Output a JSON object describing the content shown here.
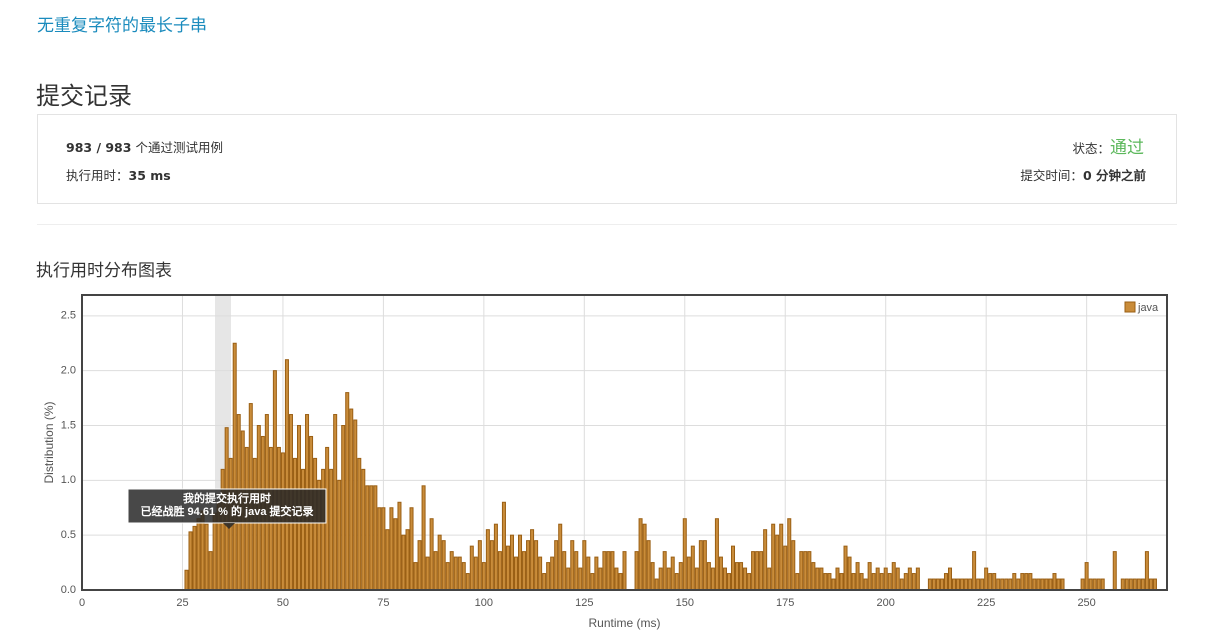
{
  "header": {
    "problem": "无重复字符的最长子串",
    "title": "提交记录"
  },
  "summary": {
    "passed": "983 / 983",
    "passed_text": "个通过测试用例",
    "runtime_label": "执行用时：",
    "runtime": "35 ms",
    "status_label": "状态：",
    "status": "通过",
    "time_label": "提交时间：",
    "time": "0 分钟之前"
  },
  "chart_heading": "执行用时分布图表",
  "chart_data": {
    "type": "bar",
    "xlabel": "Runtime (ms)",
    "ylabel": "Distribution (%)",
    "series": [
      {
        "name": "java",
        "color": "#c98c3a",
        "edge": "#9a5f14"
      }
    ],
    "tooltip": [
      "我的提交执行用时",
      "已经战胜 94.61 % 的 java 提交记录"
    ],
    "x": [
      26,
      27,
      28,
      29,
      30,
      31,
      32,
      33,
      34,
      35,
      36,
      37,
      38,
      39,
      40,
      41,
      42,
      43,
      44,
      45,
      46,
      47,
      48,
      49,
      50,
      51,
      52,
      53,
      54,
      55,
      56,
      57,
      58,
      59,
      60,
      61,
      62,
      63,
      64,
      65,
      66,
      67,
      68,
      69,
      70,
      71,
      72,
      73,
      74,
      75,
      76,
      77,
      78,
      79,
      80,
      81,
      82,
      83,
      84,
      85,
      86,
      87,
      88,
      89,
      90,
      91,
      92,
      93,
      94,
      95,
      96,
      97,
      98,
      99,
      100,
      101,
      102,
      103,
      104,
      105,
      106,
      107,
      108,
      109,
      110,
      111,
      112,
      113,
      114,
      115,
      116,
      117,
      118,
      119,
      120,
      121,
      122,
      123,
      124,
      125,
      126,
      127,
      128,
      129,
      130,
      131,
      132,
      133,
      134,
      135,
      138,
      139,
      140,
      141,
      142,
      143,
      144,
      145,
      146,
      147,
      148,
      149,
      150,
      151,
      152,
      153,
      154,
      155,
      156,
      157,
      158,
      159,
      160,
      161,
      162,
      163,
      164,
      165,
      166,
      167,
      168,
      169,
      170,
      171,
      172,
      173,
      174,
      175,
      176,
      177,
      178,
      179,
      180,
      181,
      182,
      183,
      184,
      185,
      186,
      187,
      188,
      189,
      190,
      191,
      192,
      193,
      194,
      195,
      196,
      197,
      198,
      199,
      200,
      201,
      202,
      203,
      204,
      205,
      206,
      207,
      208,
      211,
      212,
      213,
      214,
      215,
      216,
      217,
      218,
      219,
      220,
      221,
      222,
      223,
      224,
      225,
      226,
      227,
      228,
      229,
      230,
      231,
      232,
      233,
      234,
      235,
      236,
      237,
      238,
      239,
      240,
      241,
      242,
      243,
      244,
      249,
      250,
      251,
      252,
      253,
      254,
      257,
      259,
      260,
      261,
      262,
      263,
      264,
      265,
      266,
      267
    ],
    "values": [
      0.18,
      0.53,
      0.58,
      0.65,
      0.72,
      0.6,
      0.35,
      0.7,
      0.8,
      1.1,
      1.48,
      1.2,
      2.25,
      1.6,
      1.45,
      1.3,
      1.7,
      1.2,
      1.5,
      1.4,
      1.6,
      1.3,
      2.0,
      1.3,
      1.25,
      2.1,
      1.6,
      1.2,
      1.5,
      1.1,
      1.6,
      1.4,
      1.2,
      1.0,
      1.1,
      1.3,
      1.1,
      1.6,
      1.0,
      1.5,
      1.8,
      1.65,
      1.55,
      1.2,
      1.1,
      0.95,
      0.95,
      0.95,
      0.75,
      0.75,
      0.55,
      0.75,
      0.65,
      0.8,
      0.5,
      0.55,
      0.75,
      0.25,
      0.45,
      0.95,
      0.3,
      0.65,
      0.35,
      0.5,
      0.45,
      0.25,
      0.35,
      0.3,
      0.3,
      0.25,
      0.15,
      0.4,
      0.3,
      0.45,
      0.25,
      0.55,
      0.45,
      0.6,
      0.35,
      0.8,
      0.4,
      0.5,
      0.3,
      0.5,
      0.35,
      0.45,
      0.55,
      0.45,
      0.3,
      0.15,
      0.25,
      0.3,
      0.45,
      0.6,
      0.35,
      0.2,
      0.45,
      0.35,
      0.2,
      0.45,
      0.3,
      0.15,
      0.3,
      0.2,
      0.35,
      0.35,
      0.35,
      0.2,
      0.15,
      0.35,
      0.35,
      0.65,
      0.6,
      0.45,
      0.25,
      0.1,
      0.2,
      0.35,
      0.2,
      0.3,
      0.15,
      0.25,
      0.65,
      0.3,
      0.4,
      0.2,
      0.45,
      0.45,
      0.25,
      0.2,
      0.65,
      0.3,
      0.2,
      0.15,
      0.4,
      0.25,
      0.25,
      0.2,
      0.15,
      0.35,
      0.35,
      0.35,
      0.55,
      0.2,
      0.6,
      0.5,
      0.6,
      0.4,
      0.65,
      0.45,
      0.15,
      0.35,
      0.35,
      0.35,
      0.25,
      0.2,
      0.2,
      0.15,
      0.15,
      0.1,
      0.2,
      0.15,
      0.4,
      0.3,
      0.15,
      0.25,
      0.15,
      0.1,
      0.25,
      0.15,
      0.2,
      0.15,
      0.2,
      0.15,
      0.25,
      0.2,
      0.1,
      0.15,
      0.2,
      0.15,
      0.2,
      0.1,
      0.1,
      0.1,
      0.1,
      0.15,
      0.2,
      0.1,
      0.1,
      0.1,
      0.1,
      0.1,
      0.35,
      0.1,
      0.1,
      0.2,
      0.15,
      0.15,
      0.1,
      0.1,
      0.1,
      0.1,
      0.15,
      0.1,
      0.15,
      0.15,
      0.15,
      0.1,
      0.1,
      0.1,
      0.1,
      0.1,
      0.15,
      0.1,
      0.1,
      0.1,
      0.25,
      0.1,
      0.1,
      0.1,
      0.1,
      0.35,
      0.1,
      0.1,
      0.1,
      0.1,
      0.1,
      0.1,
      0.35,
      0.1,
      0.1
    ],
    "xlim": [
      0,
      270
    ],
    "xticks": [
      0,
      25,
      50,
      75,
      100,
      125,
      150,
      175,
      200,
      225,
      250
    ],
    "ylim": [
      0,
      2.69
    ],
    "yticks": [
      {
        "value": 0,
        "label": "0.0"
      },
      {
        "value": 0.5,
        "label": "0.5"
      },
      {
        "value": 1,
        "label": "1.0"
      },
      {
        "value": 1.5,
        "label": "1.5"
      },
      {
        "value": 2,
        "label": "2.0"
      },
      {
        "value": 2.5,
        "label": "2.5"
      }
    ],
    "grid": true,
    "legend": "top-right"
  }
}
